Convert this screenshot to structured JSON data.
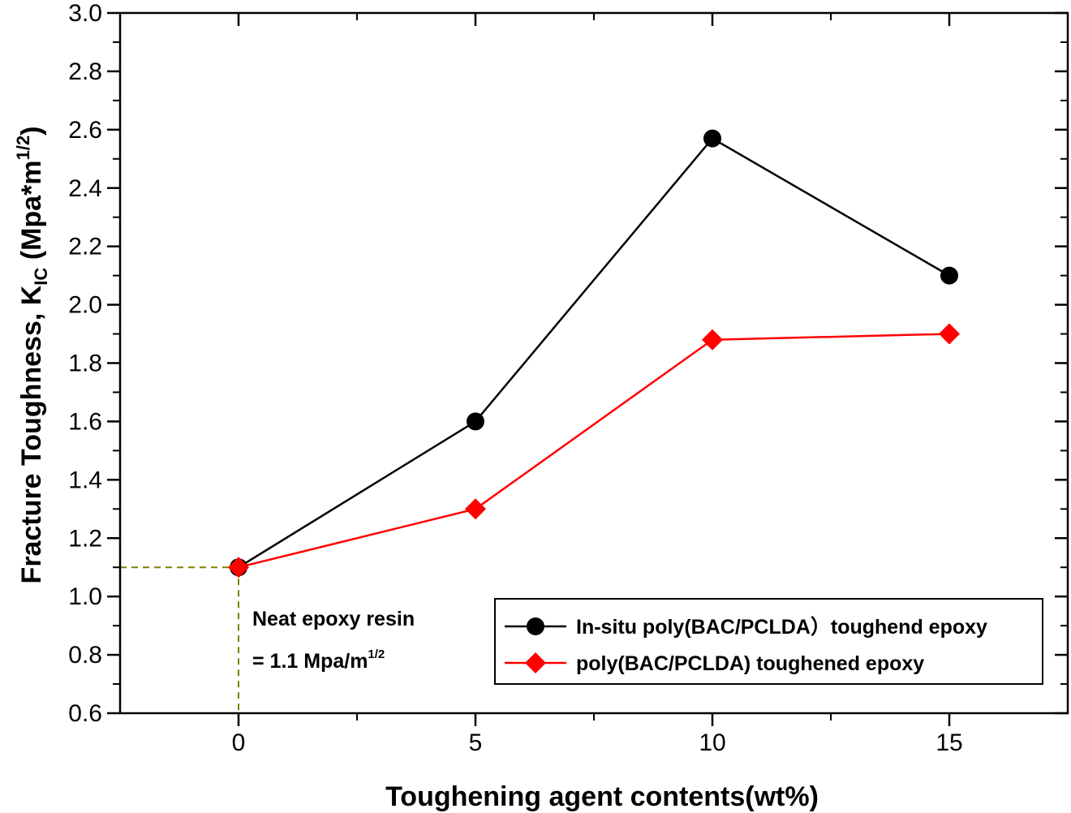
{
  "chart_data": {
    "type": "line",
    "title": "",
    "xlabel": "Toughening agent contents(wt%)",
    "ylabel": {
      "main": "Fracture Toughness, K",
      "sub": "IC",
      "unit_open": " (Mpa*m",
      "unit_sup": "1/2",
      "unit_close": ")"
    },
    "xlim": [
      -2.5,
      17.5
    ],
    "ylim": [
      0.6,
      3.0
    ],
    "xticks": [
      0,
      5,
      10,
      15
    ],
    "xtick_labels": [
      "0",
      "5",
      "10",
      "15"
    ],
    "yticks": [
      0.6,
      0.8,
      1.0,
      1.2,
      1.4,
      1.6,
      1.8,
      2.0,
      2.2,
      2.4,
      2.6,
      2.8,
      3.0
    ],
    "ytick_labels": [
      "0.6",
      "0.8",
      "1.0",
      "1.2",
      "1.4",
      "1.6",
      "1.8",
      "2.0",
      "2.2",
      "2.4",
      "2.6",
      "2.8",
      "3.0"
    ],
    "x": [
      0,
      5,
      10,
      15
    ],
    "series": [
      {
        "name": "In-situ poly(BAC/PCLDA）toughend epoxy",
        "values": [
          1.1,
          1.6,
          2.57,
          2.1
        ],
        "color": "#000000",
        "marker": "circle"
      },
      {
        "name": "poly(BAC/PCLDA) toughened epoxy",
        "values": [
          1.1,
          1.3,
          1.88,
          1.9
        ],
        "color": "#ff0000",
        "marker": "diamond"
      }
    ],
    "reference": {
      "x": 0,
      "y": 1.1,
      "color": "#808000",
      "style": "dashed"
    },
    "annotation": {
      "line1": "Neat epoxy resin",
      "line2_prefix": "= 1.1 Mpa/m",
      "line2_sup": "1/2"
    },
    "legend_placement": "bottom-right",
    "grid": false
  }
}
